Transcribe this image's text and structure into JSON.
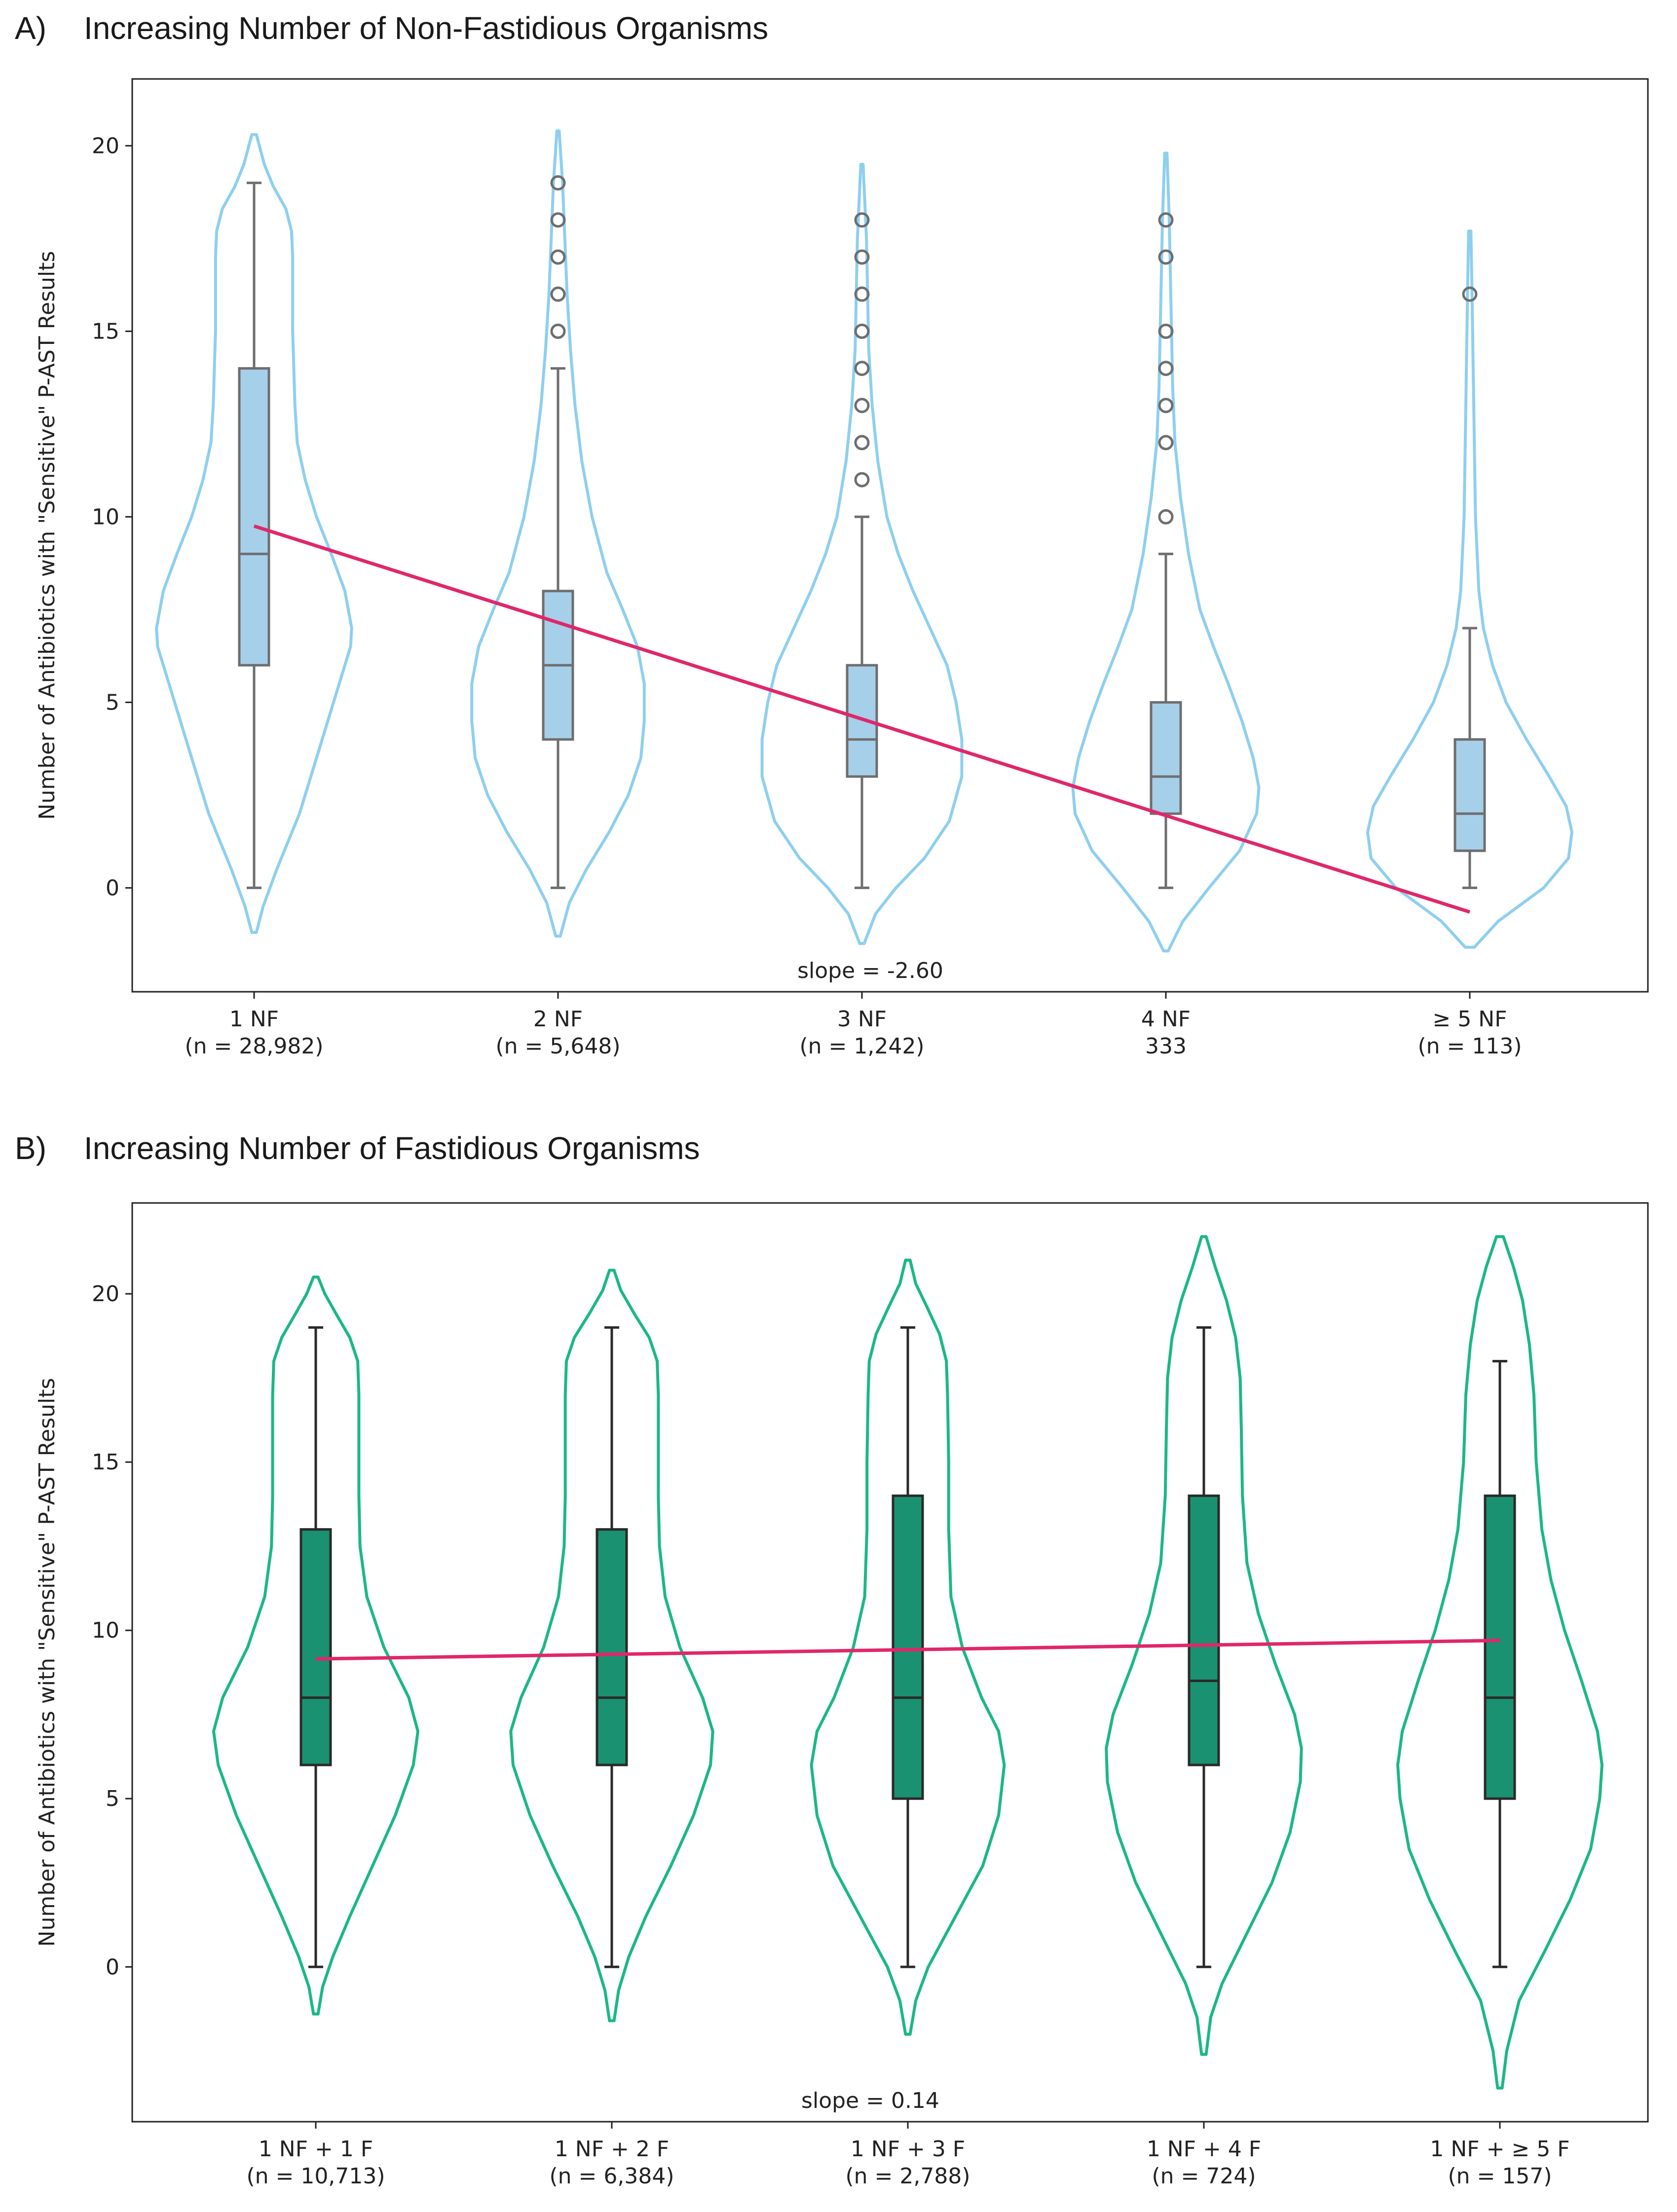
{
  "chart_data": [
    {
      "type": "violin+box",
      "panel_label": "A)",
      "title": "Increasing Number of Non-Fastidious Organisms",
      "ylabel": "Number of Antibiotics with \"Sensitive\" P-AST Results",
      "xlabel": "",
      "ylim": [
        -2.8,
        21.8
      ],
      "yticks": [
        0,
        5,
        10,
        15,
        20
      ],
      "categories": [
        {
          "label": "1 NF",
          "sub": "(n = 28,982)"
        },
        {
          "label": "2 NF",
          "sub": "(n = 5,648)"
        },
        {
          "label": "3 NF",
          "sub": "(n = 1,242)"
        },
        {
          "label": "4 NF",
          "sub": "333"
        },
        {
          "label": "≥  5 NF",
          "sub": "(n = 113)"
        }
      ],
      "boxes": [
        {
          "q1": 6,
          "median": 9,
          "q3": 14,
          "whisker_low": 0,
          "whisker_high": 19,
          "outliers": []
        },
        {
          "q1": 4,
          "median": 6,
          "q3": 8,
          "whisker_low": 0,
          "whisker_high": 14,
          "outliers": [
            15,
            16,
            17,
            18,
            19
          ]
        },
        {
          "q1": 3,
          "median": 4,
          "q3": 6,
          "whisker_low": 0,
          "whisker_high": 10,
          "outliers": [
            11,
            12,
            13,
            14,
            15,
            16,
            17,
            18
          ]
        },
        {
          "q1": 2,
          "median": 3,
          "q3": 5,
          "whisker_low": 0,
          "whisker_high": 9,
          "outliers": [
            10,
            12,
            13,
            14,
            15,
            17,
            18
          ]
        },
        {
          "q1": 1,
          "median": 2,
          "q3": 4,
          "whisker_low": 0,
          "whisker_high": 7,
          "outliers": [
            16
          ]
        }
      ],
      "violins": [
        {
          "profile": [
            [
              -1.2,
              0.02
            ],
            [
              -0.5,
              0.08
            ],
            [
              0.5,
              0.2
            ],
            [
              2,
              0.4
            ],
            [
              4,
              0.6
            ],
            [
              5.5,
              0.75
            ],
            [
              6.5,
              0.85
            ],
            [
              7,
              0.86
            ],
            [
              8,
              0.8
            ],
            [
              9,
              0.68
            ],
            [
              10,
              0.55
            ],
            [
              11,
              0.45
            ],
            [
              12,
              0.38
            ],
            [
              13,
              0.36
            ],
            [
              14,
              0.35
            ],
            [
              15,
              0.34
            ],
            [
              16,
              0.34
            ],
            [
              17,
              0.34
            ],
            [
              17.7,
              0.33
            ],
            [
              18.3,
              0.28
            ],
            [
              18.9,
              0.17
            ],
            [
              19.5,
              0.09
            ],
            [
              20.3,
              0.02
            ]
          ]
        },
        {
          "profile": [
            [
              -1.3,
              0.02
            ],
            [
              -0.4,
              0.1
            ],
            [
              0.5,
              0.25
            ],
            [
              1.5,
              0.45
            ],
            [
              2.5,
              0.62
            ],
            [
              3.5,
              0.73
            ],
            [
              4.5,
              0.76
            ],
            [
              5.5,
              0.76
            ],
            [
              6.5,
              0.7
            ],
            [
              7.5,
              0.57
            ],
            [
              8.5,
              0.43
            ],
            [
              10,
              0.3
            ],
            [
              11.5,
              0.21
            ],
            [
              13,
              0.15
            ],
            [
              14.5,
              0.11
            ],
            [
              16,
              0.08
            ],
            [
              17.5,
              0.06
            ],
            [
              19,
              0.04
            ],
            [
              20.4,
              0.01
            ]
          ]
        },
        {
          "profile": [
            [
              -1.5,
              0.02
            ],
            [
              -0.7,
              0.12
            ],
            [
              0,
              0.3
            ],
            [
              0.8,
              0.55
            ],
            [
              1.8,
              0.77
            ],
            [
              3,
              0.88
            ],
            [
              4,
              0.88
            ],
            [
              5,
              0.83
            ],
            [
              6,
              0.75
            ],
            [
              7,
              0.6
            ],
            [
              8,
              0.45
            ],
            [
              9,
              0.32
            ],
            [
              10,
              0.22
            ],
            [
              11.5,
              0.14
            ],
            [
              13,
              0.09
            ],
            [
              14.5,
              0.06
            ],
            [
              16,
              0.05
            ],
            [
              17.5,
              0.04
            ],
            [
              19.5,
              0.01
            ]
          ]
        },
        {
          "profile": [
            [
              -1.7,
              0.02
            ],
            [
              -0.9,
              0.15
            ],
            [
              0,
              0.38
            ],
            [
              1,
              0.65
            ],
            [
              2,
              0.8
            ],
            [
              2.7,
              0.82
            ],
            [
              3.5,
              0.77
            ],
            [
              4.5,
              0.67
            ],
            [
              5.5,
              0.55
            ],
            [
              6.5,
              0.42
            ],
            [
              7.5,
              0.3
            ],
            [
              9,
              0.2
            ],
            [
              10.5,
              0.13
            ],
            [
              12,
              0.08
            ],
            [
              13.5,
              0.06
            ],
            [
              15,
              0.05
            ],
            [
              16.5,
              0.04
            ],
            [
              18,
              0.03
            ],
            [
              19.8,
              0.01
            ]
          ]
        },
        {
          "profile": [
            [
              -1.6,
              0.04
            ],
            [
              -0.9,
              0.25
            ],
            [
              0,
              0.65
            ],
            [
              0.8,
              0.87
            ],
            [
              1.5,
              0.9
            ],
            [
              2.2,
              0.85
            ],
            [
              3,
              0.7
            ],
            [
              4,
              0.5
            ],
            [
              5,
              0.32
            ],
            [
              6,
              0.2
            ],
            [
              7,
              0.12
            ],
            [
              8,
              0.08
            ],
            [
              10,
              0.05
            ],
            [
              12,
              0.04
            ],
            [
              14,
              0.03
            ],
            [
              16,
              0.02
            ],
            [
              17.7,
              0.01
            ]
          ]
        }
      ],
      "trend": {
        "y_start": 9.75,
        "y_end": -0.65,
        "slope_label": "slope = -2.60"
      },
      "colors": {
        "violin": "#8ecfef",
        "box_fill": "#a6cfe9",
        "box_edge": "#6e6e6e",
        "trend": "#e0276a",
        "outlier": "#6e6e6e"
      }
    },
    {
      "type": "violin+box",
      "panel_label": "B)",
      "title": "Increasing Number of Fastidious Organisms",
      "ylabel": "Number of Antibiotics with \"Sensitive\" P-AST Results",
      "xlabel": "",
      "ylim": [
        -4.6,
        22.7
      ],
      "yticks": [
        0,
        5,
        10,
        15,
        20
      ],
      "categories": [
        {
          "label": "1 NF + 1 F",
          "sub": "(n = 10,713)"
        },
        {
          "label": "1 NF + 2 F",
          "sub": "(n = 6,384)"
        },
        {
          "label": "1 NF + 3 F",
          "sub": "(n = 2,788)"
        },
        {
          "label": "1 NF + 4 F",
          "sub": "(n = 724)"
        },
        {
          "label": "1 NF + ≥  5 F",
          "sub": "(n = 157)"
        }
      ],
      "boxes": [
        {
          "q1": 6,
          "median": 8,
          "q3": 13,
          "whisker_low": 0,
          "whisker_high": 19,
          "outliers": []
        },
        {
          "q1": 6,
          "median": 8,
          "q3": 13,
          "whisker_low": 0,
          "whisker_high": 19,
          "outliers": []
        },
        {
          "q1": 5,
          "median": 8,
          "q3": 14,
          "whisker_low": 0,
          "whisker_high": 19,
          "outliers": []
        },
        {
          "q1": 6,
          "median": 8.5,
          "q3": 14,
          "whisker_low": 0,
          "whisker_high": 19,
          "outliers": []
        },
        {
          "q1": 5,
          "median": 8,
          "q3": 14,
          "whisker_low": 0,
          "whisker_high": 18,
          "outliers": []
        }
      ],
      "violins": [
        {
          "profile": [
            [
              -1.4,
              0.02
            ],
            [
              -0.6,
              0.06
            ],
            [
              0.3,
              0.15
            ],
            [
              1.5,
              0.3
            ],
            [
              3,
              0.5
            ],
            [
              4.5,
              0.7
            ],
            [
              6,
              0.86
            ],
            [
              7,
              0.9
            ],
            [
              8,
              0.82
            ],
            [
              9.5,
              0.6
            ],
            [
              11,
              0.45
            ],
            [
              12.5,
              0.39
            ],
            [
              14,
              0.38
            ],
            [
              15.5,
              0.38
            ],
            [
              17,
              0.38
            ],
            [
              18,
              0.37
            ],
            [
              18.7,
              0.3
            ],
            [
              19.4,
              0.18
            ],
            [
              20,
              0.08
            ],
            [
              20.5,
              0.02
            ]
          ]
        },
        {
          "profile": [
            [
              -1.6,
              0.02
            ],
            [
              -0.7,
              0.06
            ],
            [
              0.3,
              0.15
            ],
            [
              1.5,
              0.3
            ],
            [
              3,
              0.52
            ],
            [
              4.5,
              0.72
            ],
            [
              6,
              0.87
            ],
            [
              7,
              0.89
            ],
            [
              8,
              0.8
            ],
            [
              9.5,
              0.6
            ],
            [
              11,
              0.47
            ],
            [
              12.5,
              0.42
            ],
            [
              14,
              0.41
            ],
            [
              15.5,
              0.41
            ],
            [
              17,
              0.41
            ],
            [
              18,
              0.4
            ],
            [
              18.7,
              0.33
            ],
            [
              19.4,
              0.2
            ],
            [
              20.1,
              0.08
            ],
            [
              20.7,
              0.02
            ]
          ]
        },
        {
          "profile": [
            [
              -2,
              0.02
            ],
            [
              -1,
              0.07
            ],
            [
              0,
              0.18
            ],
            [
              1.5,
              0.42
            ],
            [
              3,
              0.66
            ],
            [
              4.5,
              0.8
            ],
            [
              6,
              0.85
            ],
            [
              7,
              0.8
            ],
            [
              8,
              0.65
            ],
            [
              9.5,
              0.48
            ],
            [
              11,
              0.38
            ],
            [
              13,
              0.36
            ],
            [
              15,
              0.36
            ],
            [
              17,
              0.35
            ],
            [
              18,
              0.34
            ],
            [
              18.8,
              0.28
            ],
            [
              19.6,
              0.17
            ],
            [
              20.3,
              0.07
            ],
            [
              21,
              0.02
            ]
          ]
        },
        {
          "profile": [
            [
              -2.6,
              0.02
            ],
            [
              -1.5,
              0.06
            ],
            [
              -0.5,
              0.16
            ],
            [
              1,
              0.38
            ],
            [
              2.5,
              0.6
            ],
            [
              4,
              0.76
            ],
            [
              5.5,
              0.85
            ],
            [
              6.5,
              0.86
            ],
            [
              7.5,
              0.8
            ],
            [
              9,
              0.63
            ],
            [
              10.5,
              0.48
            ],
            [
              12,
              0.38
            ],
            [
              14,
              0.34
            ],
            [
              16,
              0.33
            ],
            [
              17.5,
              0.32
            ],
            [
              18.7,
              0.28
            ],
            [
              19.8,
              0.2
            ],
            [
              20.8,
              0.1
            ],
            [
              21.7,
              0.02
            ]
          ]
        },
        {
          "profile": [
            [
              -3.6,
              0.02
            ],
            [
              -2.5,
              0.06
            ],
            [
              -1,
              0.17
            ],
            [
              0.5,
              0.4
            ],
            [
              2,
              0.62
            ],
            [
              3.5,
              0.8
            ],
            [
              5,
              0.88
            ],
            [
              6,
              0.9
            ],
            [
              7,
              0.86
            ],
            [
              8.5,
              0.72
            ],
            [
              10,
              0.57
            ],
            [
              11.5,
              0.45
            ],
            [
              13,
              0.37
            ],
            [
              15,
              0.32
            ],
            [
              17,
              0.3
            ],
            [
              18.5,
              0.26
            ],
            [
              19.8,
              0.2
            ],
            [
              20.8,
              0.12
            ],
            [
              21.7,
              0.03
            ]
          ]
        }
      ],
      "trend": {
        "y_start": 9.15,
        "y_end": 9.7,
        "slope_label": "slope = 0.14"
      },
      "colors": {
        "violin": "#1cb787",
        "box_fill": "#1a9170",
        "box_edge": "#2a2a2a",
        "trend": "#e0276a",
        "outlier": "#2a2a2a"
      }
    }
  ]
}
